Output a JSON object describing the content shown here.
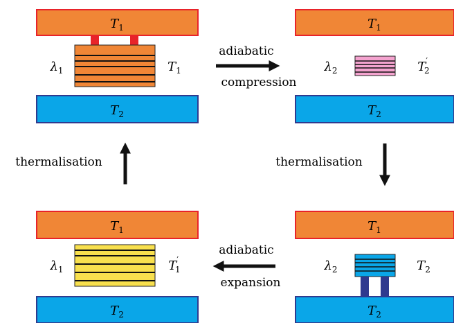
{
  "colors": {
    "hot_fill": "#f08636",
    "hot_border": "#e8232a",
    "cold_fill": "#0aa6e8",
    "cold_border": "#2f3a8f",
    "orange_system": "#f08636",
    "pink_system": "#f4a3cf",
    "yellow_system": "#f8e04e",
    "blue_system": "#0aa6e8",
    "hot_link": "#e8232a",
    "cold_link": "#2f3a8f",
    "arrow": "#111111"
  },
  "panels": {
    "top_left": {
      "hot_label": "T",
      "hot_sub": "1",
      "cold_label": "T",
      "cold_sub": "2",
      "lambda_label": "λ",
      "lambda_sub": "1",
      "temp_label": "T",
      "temp_sub": "1",
      "temp_prime": ""
    },
    "top_right": {
      "hot_label": "T",
      "hot_sub": "1",
      "cold_label": "T",
      "cold_sub": "2",
      "lambda_label": "λ",
      "lambda_sub": "2",
      "temp_label": "T",
      "temp_sub": "2",
      "temp_prime": "′"
    },
    "bottom_left": {
      "hot_label": "T",
      "hot_sub": "1",
      "cold_label": "T",
      "cold_sub": "2",
      "lambda_label": "λ",
      "lambda_sub": "1",
      "temp_label": "T",
      "temp_sub": "1",
      "temp_prime": "′"
    },
    "bottom_right": {
      "hot_label": "T",
      "hot_sub": "1",
      "cold_label": "T",
      "cold_sub": "2",
      "lambda_label": "λ",
      "lambda_sub": "2",
      "temp_label": "T",
      "temp_sub": "2",
      "temp_prime": ""
    }
  },
  "arrows": {
    "compression": {
      "line1": "adiabatic",
      "line2": "compression"
    },
    "expansion": {
      "line1": "adiabatic",
      "line2": "expansion"
    },
    "therm_left": "thermalisation",
    "therm_right": "thermalisation"
  }
}
